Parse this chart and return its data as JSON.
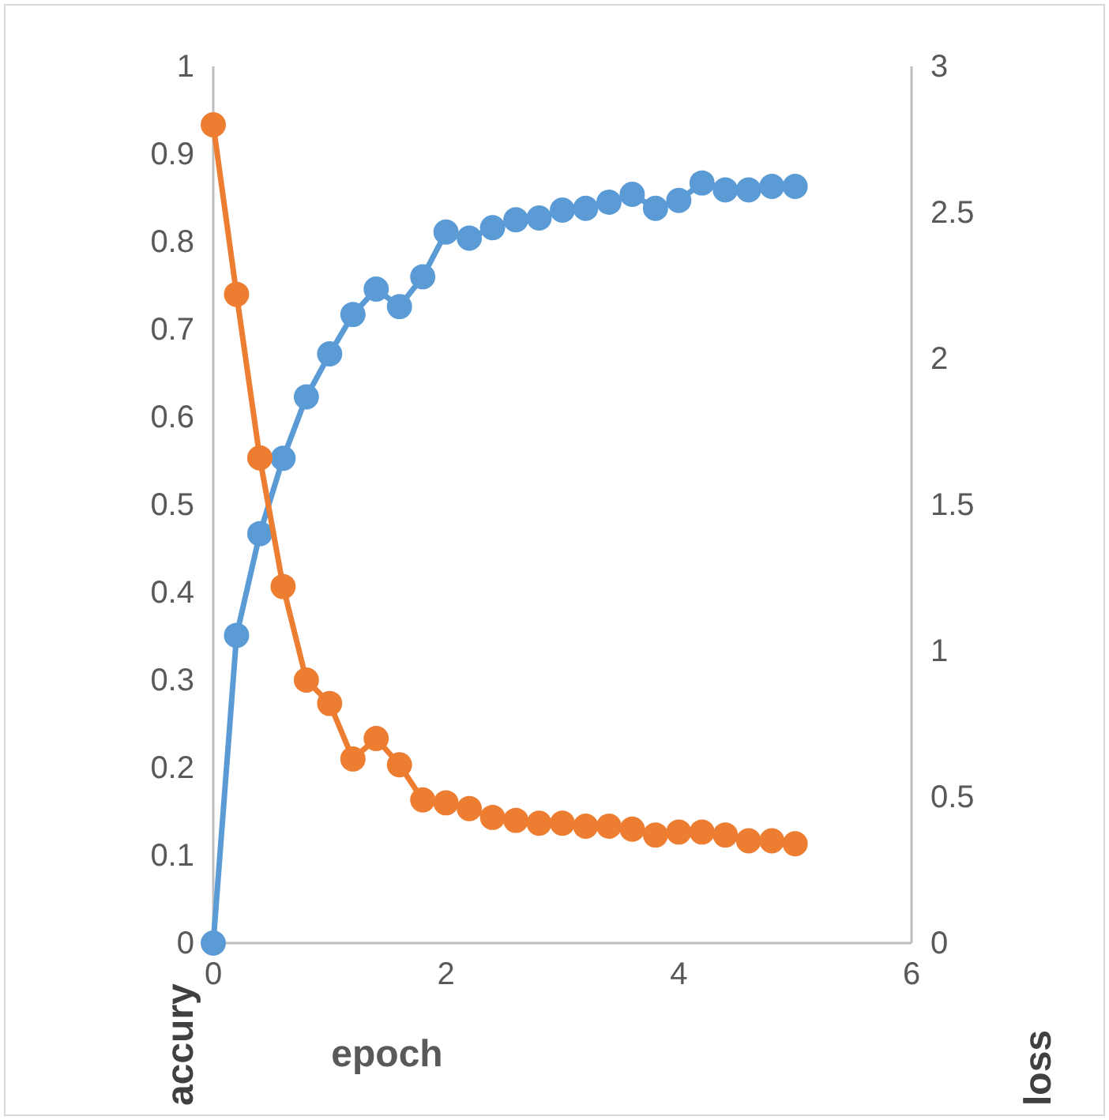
{
  "chart_data": {
    "type": "line",
    "xlabel": "epoch",
    "ylabel": "accury",
    "y2label": "loss",
    "x": [
      0,
      0.2,
      0.4,
      0.6,
      0.8,
      1,
      1.2,
      1.4,
      1.6,
      1.8,
      2,
      2.2,
      2.4,
      2.6,
      2.8,
      3,
      3.2,
      3.4,
      3.6,
      3.8,
      4,
      4.2,
      4.4,
      4.6,
      4.8,
      5
    ],
    "series": [
      {
        "color": "#5b9bd5",
        "values": [
          0,
          0.351,
          0.467,
          0.553,
          0.623,
          0.672,
          0.717,
          0.746,
          0.726,
          0.76,
          0.811,
          0.804,
          0.816,
          0.825,
          0.827,
          0.836,
          0.838,
          0.845,
          0.854,
          0.838,
          0.847,
          0.867,
          0.859,
          0.859,
          0.863,
          0.863
        ]
      },
      {
        "color": "#ed7d31",
        "axis": "y2",
        "values": [
          2.8,
          2.22,
          1.66,
          1.22,
          0.9,
          0.82,
          0.63,
          0.7,
          0.61,
          0.49,
          0.48,
          0.46,
          0.43,
          0.42,
          0.41,
          0.41,
          0.4,
          0.4,
          0.39,
          0.37,
          0.38,
          0.38,
          0.37,
          0.35,
          0.35,
          0.34
        ]
      }
    ],
    "xlim": [
      0,
      6
    ],
    "xticks": [
      0,
      2,
      4,
      6
    ],
    "ylim": [
      0,
      1
    ],
    "yticks": [
      0,
      0.1,
      0.2,
      0.3,
      0.4,
      0.5,
      0.6,
      0.7,
      0.8,
      0.9,
      1
    ],
    "y2lim": [
      0,
      3
    ],
    "y2ticks": [
      0,
      0.5,
      1,
      1.5,
      2,
      2.5,
      3
    ],
    "grid": false,
    "marker": "circle",
    "line_style": "solid"
  }
}
